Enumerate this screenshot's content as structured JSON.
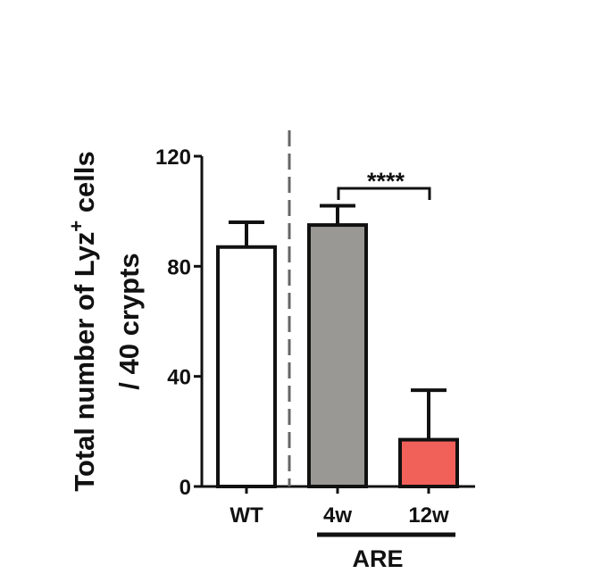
{
  "chart_data": {
    "type": "bar",
    "ylabel_line1": "Total number of Lyz",
    "ylabel_sup": "+",
    "ylabel_line1_end": " cells",
    "ylabel_line2": "/ 40 crypts",
    "ylim": [
      0,
      120
    ],
    "yticks": [
      "0",
      "40",
      "80",
      "120"
    ],
    "ytick_values": [
      0,
      40,
      80,
      120
    ],
    "categories": [
      "WT",
      "4w",
      "12w"
    ],
    "values": [
      87,
      95,
      17
    ],
    "errors": [
      9,
      7,
      18
    ],
    "colors": [
      "#ffffff",
      "#9a9895",
      "#f2605a"
    ],
    "group_label": "ARE",
    "significance": "****",
    "grid": false,
    "legend": "none"
  }
}
